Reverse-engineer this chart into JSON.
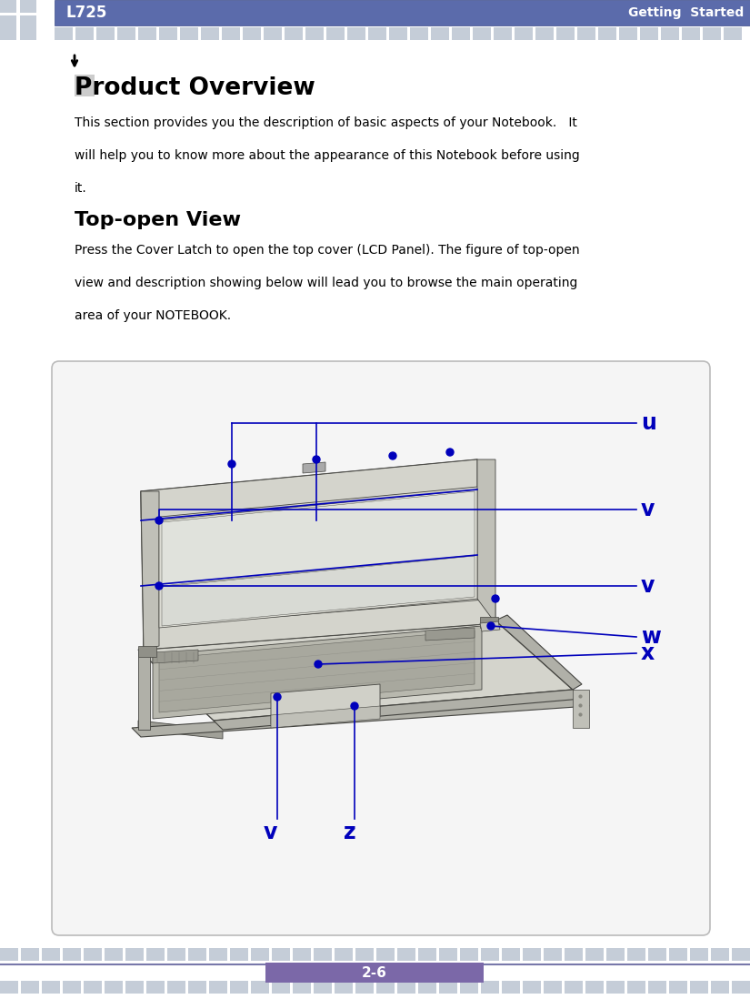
{
  "page_title": "L725",
  "page_subtitle": "Getting  Started",
  "header_color": "#5b6bab",
  "header_text_color": "#ffffff",
  "footer_page_num": "2-6",
  "footer_color": "#7b68a8",
  "footer_text_color": "#ffffff",
  "tile_color_light": "#c5cdd8",
  "body_bg": "#ffffff",
  "section1_title": "Product Overview",
  "section2_title": "Top-open View",
  "arrow_color": "#0000bb",
  "label_color": "#0000bb",
  "box_bg": "#f5f5f5",
  "box_border": "#bbbbbb",
  "laptop_body": "#d4d4cc",
  "laptop_shadow": "#b0b0a8",
  "laptop_screen_bg": "#e8e8e0",
  "laptop_dark": "#888880",
  "laptop_outline": "#444440",
  "laptop_white_screen": "#e4e6e0"
}
